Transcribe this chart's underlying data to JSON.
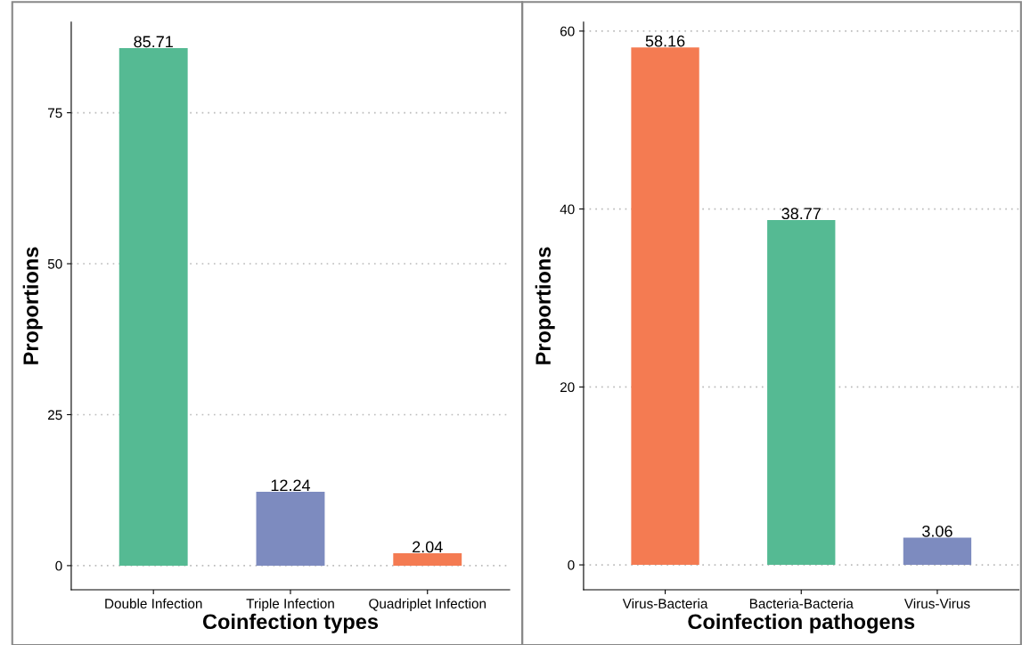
{
  "chart_data": [
    {
      "type": "bar",
      "xlabel": "Coinfection types",
      "ylabel": "Proportions",
      "categories": [
        "Double Infection",
        "Triple Infection",
        "Quadriplet Infection"
      ],
      "values": [
        85.71,
        12.24,
        2.04
      ],
      "colors": [
        "#55ba93",
        "#7d8bbf",
        "#f47b52"
      ],
      "ylim": [
        -4,
        90
      ],
      "yticks": [
        0,
        25,
        50,
        75
      ],
      "grid": "y",
      "data_labels": true
    },
    {
      "type": "bar",
      "xlabel": "Coinfection pathogens",
      "ylabel": "Proportions",
      "categories": [
        "Virus-Bacteria",
        "Bacteria-Bacteria",
        "Virus-Virus"
      ],
      "values": [
        58.16,
        38.77,
        3.06
      ],
      "colors": [
        "#f47b52",
        "#55ba93",
        "#7d8bbf"
      ],
      "ylim": [
        -2.8,
        61
      ],
      "yticks": [
        0,
        20,
        40,
        60
      ],
      "grid": "y",
      "data_labels": true
    }
  ]
}
